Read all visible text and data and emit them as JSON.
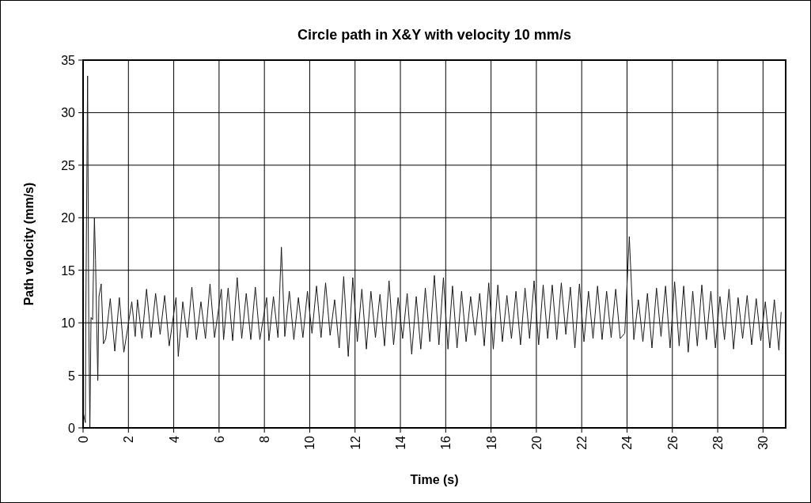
{
  "chart_data": {
    "type": "line",
    "title": "Circle path in X&Y with velocity 10 mm/s",
    "xlabel": "Time (s)",
    "ylabel": "Path velocity (mm/s)",
    "xlim": [
      0,
      31
    ],
    "xticks": [
      0,
      2,
      4,
      6,
      8,
      10,
      12,
      14,
      16,
      18,
      20,
      22,
      24,
      26,
      28,
      30
    ],
    "ylim": [
      0,
      35
    ],
    "yticks": [
      0,
      5,
      10,
      15,
      20,
      25,
      30,
      35
    ],
    "grid": true,
    "marker": "none",
    "line_style": "solid",
    "series": [
      {
        "color": "#1a1a1a",
        "x": [
          0,
          0.05,
          0.1,
          0.12,
          0.2,
          0.25,
          0.3,
          0.35,
          0.42,
          0.5,
          0.55,
          0.6,
          0.65,
          0.7,
          0.8,
          0.9,
          1.0,
          1.2,
          1.4,
          1.6,
          1.8,
          2.15,
          2.3,
          2.4,
          2.6,
          2.8,
          3.0,
          3.2,
          3.4,
          3.6,
          3.8,
          4.1,
          4.2,
          4.4,
          4.6,
          4.8,
          5.0,
          5.2,
          5.4,
          5.6,
          5.8,
          6.1,
          6.2,
          6.4,
          6.6,
          6.8,
          7.0,
          7.2,
          7.4,
          7.6,
          7.8,
          8.1,
          8.2,
          8.4,
          8.6,
          8.75,
          8.9,
          9.1,
          9.3,
          9.5,
          9.7,
          9.9,
          10.1,
          10.3,
          10.5,
          10.7,
          10.9,
          11.1,
          11.3,
          11.5,
          11.7,
          11.9,
          12.1,
          12.3,
          12.5,
          12.7,
          12.9,
          13.1,
          13.3,
          13.5,
          13.7,
          13.9,
          14.1,
          14.3,
          14.5,
          14.7,
          14.9,
          15.1,
          15.3,
          15.5,
          15.7,
          15.9,
          16.1,
          16.3,
          16.5,
          16.7,
          16.9,
          17.1,
          17.3,
          17.5,
          17.7,
          17.9,
          18.1,
          18.3,
          18.5,
          18.7,
          18.9,
          19.1,
          19.3,
          19.5,
          19.7,
          19.9,
          20.1,
          20.3,
          20.5,
          20.7,
          20.9,
          21.1,
          21.3,
          21.5,
          21.7,
          21.9,
          22.1,
          22.3,
          22.5,
          22.7,
          22.9,
          23.1,
          23.3,
          23.5,
          23.7,
          23.9,
          24.1,
          24.3,
          24.5,
          24.7,
          24.9,
          25.1,
          25.3,
          25.5,
          25.7,
          25.9,
          26.1,
          26.3,
          26.5,
          26.7,
          26.9,
          27.1,
          27.3,
          27.5,
          27.7,
          27.9,
          28.1,
          28.3,
          28.5,
          28.7,
          28.9,
          29.1,
          29.3,
          29.5,
          29.7,
          29.9,
          30.1,
          30.3,
          30.5,
          30.7,
          30.8
        ],
        "values": [
          1.5,
          1,
          0.5,
          10.3,
          33.5,
          10.3,
          0,
          10.5,
          10.3,
          20,
          16,
          10,
          4.5,
          12.5,
          13.7,
          8,
          8.5,
          12.3,
          7.3,
          12.4,
          7.2,
          12,
          8.7,
          12.2,
          8.5,
          13.2,
          8.6,
          12.8,
          8.9,
          12.6,
          7.8,
          12.4,
          6.8,
          12,
          8.6,
          13.4,
          8.4,
          12,
          8.5,
          13.7,
          8.6,
          13.2,
          8.4,
          13.3,
          8.3,
          14.3,
          8.5,
          12.8,
          8.4,
          13.4,
          8.4,
          12.4,
          8.3,
          12.5,
          8.6,
          17.2,
          8.7,
          13,
          8.4,
          12.4,
          8.6,
          13,
          9,
          13.5,
          8.6,
          13.8,
          8.8,
          12.2,
          7.6,
          14.4,
          6.8,
          14.3,
          8.2,
          13.2,
          7.5,
          13,
          8.6,
          12.7,
          7.8,
          14,
          7.9,
          12.4,
          8.5,
          12.8,
          7,
          12.5,
          7.5,
          13.3,
          8.2,
          14.5,
          7.9,
          14.3,
          7.5,
          13.5,
          7.6,
          13,
          8.2,
          12.5,
          8.8,
          12.8,
          7.8,
          13.8,
          7.5,
          13.6,
          8.2,
          12.6,
          8.5,
          13,
          7.9,
          13.3,
          8.5,
          14,
          7.9,
          13.6,
          8.5,
          13.6,
          8.4,
          13.8,
          8.9,
          13.4,
          7.6,
          13.7,
          8.2,
          13,
          8.5,
          13.5,
          8.4,
          13,
          8.6,
          13.2,
          8.5,
          9,
          18.2,
          8.4,
          12.2,
          8.2,
          12.8,
          7.6,
          13.3,
          8.7,
          13.5,
          7.6,
          13.9,
          7.8,
          13.5,
          7.2,
          13,
          7.8,
          13.6,
          8.4,
          13,
          7.6,
          12.5,
          8.4,
          13.2,
          7.5,
          12.4,
          8.5,
          12.6,
          7.9,
          12.3,
          8.3,
          12,
          7.6,
          12.2,
          7.4,
          11
        ]
      }
    ]
  }
}
